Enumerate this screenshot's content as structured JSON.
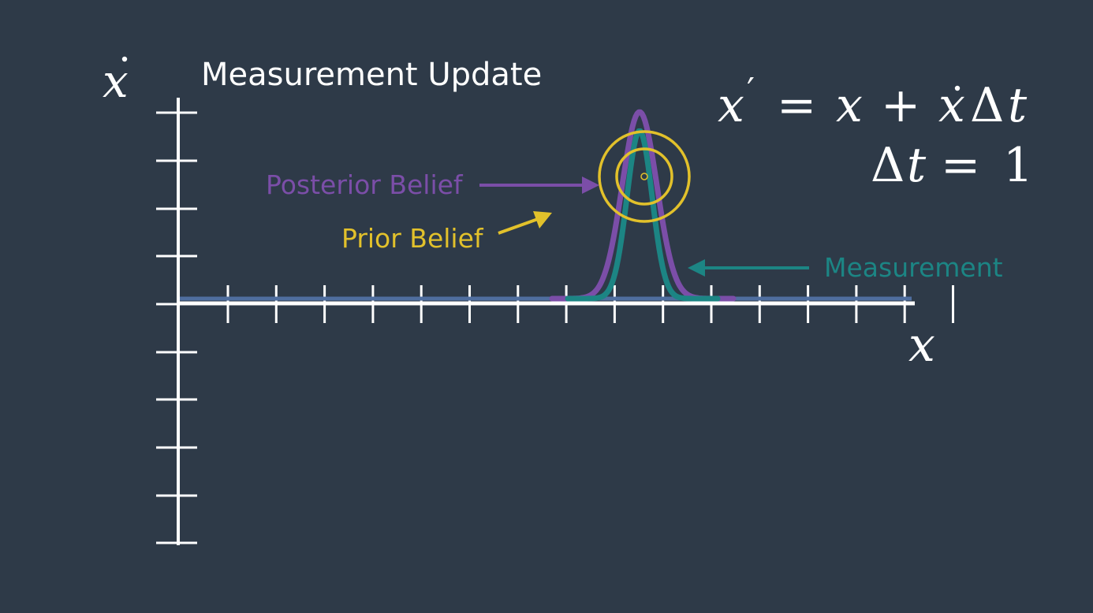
{
  "title": "Measurement Update",
  "axes": {
    "y_var": "x",
    "x_var": "x"
  },
  "equations": {
    "line1": {
      "lhs": "x",
      "prime": "′",
      "eq": "=",
      "x": "x",
      "plus": "+",
      "xdot": "x",
      "delta": "Δ",
      "t": "t"
    },
    "line2": {
      "delta": "Δ",
      "t": "t",
      "eq": "=",
      "one": "1"
    }
  },
  "labels": {
    "posterior": "Posterior Belief",
    "prior": "Prior Belief",
    "measurement": "Measurement"
  },
  "colors": {
    "background": "#2e3a48",
    "axis": "#ffffff",
    "posterior": "#7b4ea8",
    "prior": "#e2c12b",
    "measurement": "#1c8584",
    "baseline": "#4f6e9f"
  }
}
